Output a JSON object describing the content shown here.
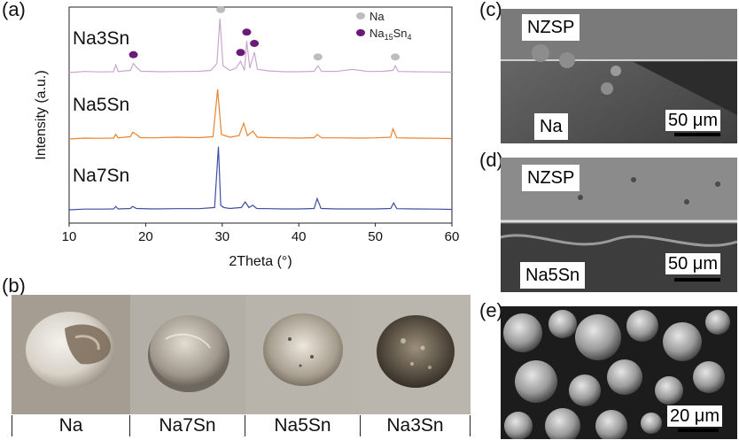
{
  "panels": {
    "a": "(a)",
    "b": "(b)",
    "c": "(c)",
    "d": "(d)",
    "e": "(e)"
  },
  "chart_data": {
    "type": "line",
    "xlabel": "2Theta (°)",
    "ylabel": "Intensity (a.u.)",
    "xlim": [
      10,
      60
    ],
    "xticks": [
      10,
      20,
      30,
      40,
      50,
      60
    ],
    "legend": [
      {
        "name": "Na",
        "color": "#bdbdbd"
      },
      {
        "name": "Na15Sn4",
        "color": "#6a1b7a"
      }
    ],
    "series": [
      {
        "name": "Na3Sn",
        "color": "#c9a6cf",
        "x": [
          10,
          12,
          14,
          15.8,
          16.1,
          16.4,
          18,
          18.4,
          18.9,
          19.4,
          22,
          25,
          27,
          28.5,
          29.3,
          29.7,
          30.1,
          31,
          31.8,
          32.4,
          32.9,
          33.2,
          33.6,
          34.2,
          34.6,
          36,
          38,
          40,
          42,
          42.5,
          43,
          45,
          47,
          49,
          51,
          52.3,
          52.6,
          53,
          55,
          57,
          60
        ],
        "values": [
          0,
          0.5,
          0.3,
          0.4,
          3.5,
          0.5,
          1,
          4,
          2,
          0.6,
          0.4,
          0.5,
          0.6,
          1,
          4,
          24,
          3,
          1,
          2,
          5,
          1,
          14,
          2,
          9,
          1.5,
          0.8,
          0.4,
          0.4,
          0.6,
          3,
          0.5,
          0.6,
          1.4,
          0.5,
          0.6,
          1,
          3,
          0.5,
          0.4,
          0.3,
          0.2
        ]
      },
      {
        "name": "Na5Sn",
        "color": "#e8832f",
        "x": [
          10,
          12,
          14,
          15.8,
          16.1,
          16.4,
          18,
          18.3,
          18.8,
          19.3,
          21,
          24,
          27,
          28.8,
          29.4,
          29.9,
          31,
          32.2,
          32.8,
          33.3,
          34,
          34.6,
          36,
          38,
          40,
          42,
          42.4,
          43,
          45,
          48,
          50,
          52,
          52.3,
          52.8,
          55,
          58,
          60
        ],
        "values": [
          0,
          0.4,
          0.3,
          0.4,
          2,
          0.5,
          1,
          3,
          2,
          0.6,
          0.5,
          0.8,
          0.6,
          1,
          22,
          2,
          0.8,
          1.5,
          7,
          1.5,
          3.5,
          0.8,
          0.6,
          0.5,
          0.4,
          0.6,
          2,
          0.5,
          0.5,
          0.4,
          0.5,
          0.8,
          4.5,
          0.5,
          0.4,
          0.3,
          0.2
        ]
      },
      {
        "name": "Na7Sn",
        "color": "#3d4fa3",
        "x": [
          10,
          12,
          14,
          15.8,
          16.1,
          16.4,
          18,
          18.3,
          18.8,
          21,
          24,
          27,
          29,
          29.5,
          29.8,
          30.2,
          31,
          32.5,
          33,
          33.5,
          34,
          34.5,
          36,
          38,
          40,
          42,
          42.4,
          42.9,
          45,
          48,
          50,
          52,
          52.4,
          52.8,
          55,
          58,
          60
        ],
        "values": [
          0,
          0.3,
          0.3,
          0.4,
          1.5,
          0.4,
          0.6,
          1.5,
          0.6,
          0.4,
          0.5,
          0.5,
          1,
          28,
          2,
          1,
          0.6,
          1,
          3.5,
          1,
          2,
          0.6,
          0.5,
          0.4,
          0.4,
          0.6,
          5,
          0.6,
          0.4,
          0.4,
          0.4,
          0.6,
          3,
          0.5,
          0.4,
          0.3,
          0.2
        ]
      }
    ],
    "markers": [
      {
        "type": "Na",
        "x": 29.8,
        "series": "Na3Sn"
      },
      {
        "type": "Na",
        "x": 42.5,
        "series": "Na3Sn"
      },
      {
        "type": "Na",
        "x": 52.6,
        "series": "Na3Sn"
      },
      {
        "type": "Na15Sn4",
        "x": 18.4,
        "series": "Na3Sn"
      },
      {
        "type": "Na15Sn4",
        "x": 32.4,
        "series": "Na3Sn"
      },
      {
        "type": "Na15Sn4",
        "x": 33.2,
        "series": "Na3Sn"
      },
      {
        "type": "Na15Sn4",
        "x": 34.2,
        "series": "Na3Sn"
      }
    ]
  },
  "photos": {
    "captions": [
      "Na",
      "Na7Sn",
      "Na5Sn",
      "Na3Sn"
    ]
  },
  "sem": {
    "c": {
      "top_label": "NZSP",
      "bottom_label": "Na",
      "scale": "50 μm"
    },
    "d": {
      "top_label": "NZSP",
      "bottom_label": "Na5Sn",
      "scale": "50 μm"
    },
    "e": {
      "scale": "20 μm"
    }
  }
}
